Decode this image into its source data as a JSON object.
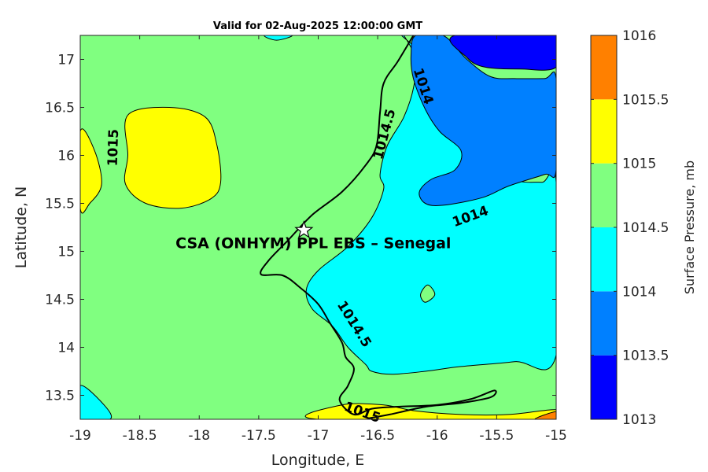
{
  "title": "Valid for 02-Aug-2025 12:00:00 GMT",
  "x_axis": {
    "label": "Longitude, E",
    "min": -19,
    "max": -15,
    "ticks": [
      -19,
      -18.5,
      -18,
      -17.5,
      -17,
      -16.5,
      -16,
      -15.5,
      -15
    ],
    "tick_labels": [
      "-19",
      "-18.5",
      "-18",
      "-17.5",
      "-17",
      "-16.5",
      "-16",
      "-15.5",
      "-15"
    ]
  },
  "y_axis": {
    "label": "Latitude, N",
    "min": 13.25,
    "max": 17.25,
    "ticks": [
      13.5,
      14,
      14.5,
      15,
      15.5,
      16,
      16.5,
      17
    ],
    "tick_labels": [
      "13.5",
      "14",
      "14.5",
      "15",
      "15.5",
      "16",
      "16.5",
      "17"
    ]
  },
  "colorbar": {
    "label": "Surface Pressure, mb",
    "levels": [
      1013,
      1013.5,
      1014,
      1014.5,
      1015,
      1015.5,
      1016
    ],
    "tick_labels": [
      "1013",
      "1013.5",
      "1014",
      "1014.5",
      "1015",
      "1015.5",
      "1016"
    ],
    "colors": [
      "#0000ff",
      "#0080ff",
      "#00ffff",
      "#80ff80",
      "#ffff00",
      "#ff8000",
      "#ff0000"
    ]
  },
  "site": {
    "name": "CSA (ONHYM) PPL EBS  – Senegal",
    "lon": -17.12,
    "lat": 15.22,
    "marker": "star-icon"
  },
  "contour_labels": [
    {
      "text": "1015",
      "lon": -18.72,
      "lat": 16.08,
      "angle": -88
    },
    {
      "text": "1014.5",
      "lon": -16.44,
      "lat": 16.22,
      "angle": -75
    },
    {
      "text": "1014",
      "lon": -16.12,
      "lat": 16.72,
      "angle": 72
    },
    {
      "text": "1014",
      "lon": -15.72,
      "lat": 15.36,
      "angle": -20
    },
    {
      "text": "1014.5",
      "lon": -16.7,
      "lat": 14.24,
      "angle": 58
    },
    {
      "text": "1015",
      "lon": -16.63,
      "lat": 13.32,
      "angle": 20
    }
  ],
  "map_fields": {
    "background_level": "1014.5",
    "regions": [
      {
        "level": "1014",
        "boundary": [
          [
            -16.3,
            17.25
          ],
          [
            -16.05,
            16.95
          ],
          [
            -15.96,
            16.55
          ],
          [
            -15.8,
            16.18
          ],
          [
            -15.55,
            16.0
          ],
          [
            -15.35,
            15.75
          ],
          [
            -15.12,
            15.72
          ],
          [
            -15.0,
            15.72
          ],
          [
            -15.0,
            13.92
          ],
          [
            -15.35,
            13.85
          ],
          [
            -15.8,
            13.8
          ],
          [
            -16.1,
            13.75
          ],
          [
            -16.38,
            13.72
          ],
          [
            -16.55,
            13.75
          ],
          [
            -16.6,
            13.82
          ],
          [
            -16.75,
            14.0
          ],
          [
            -16.88,
            14.22
          ],
          [
            -17.05,
            14.4
          ],
          [
            -17.1,
            14.6
          ],
          [
            -17.0,
            14.8
          ],
          [
            -16.75,
            15.05
          ],
          [
            -16.55,
            15.35
          ],
          [
            -16.45,
            15.65
          ],
          [
            -16.48,
            15.8
          ],
          [
            -16.42,
            16.1
          ],
          [
            -16.28,
            16.4
          ],
          [
            -16.2,
            16.7
          ],
          [
            -16.18,
            17.0
          ],
          [
            -16.28,
            17.25
          ]
        ]
      },
      {
        "level": "1013.5",
        "boundary": [
          [
            -15.95,
            17.25
          ],
          [
            -15.75,
            17.0
          ],
          [
            -15.55,
            16.82
          ],
          [
            -15.35,
            16.8
          ],
          [
            -15.1,
            16.8
          ],
          [
            -15.0,
            16.8
          ],
          [
            -15.0,
            15.85
          ],
          [
            -15.1,
            15.8
          ],
          [
            -15.4,
            15.68
          ],
          [
            -15.62,
            15.56
          ],
          [
            -15.95,
            15.48
          ],
          [
            -16.1,
            15.5
          ],
          [
            -16.15,
            15.62
          ],
          [
            -16.05,
            15.75
          ],
          [
            -15.85,
            15.85
          ],
          [
            -15.8,
            16.05
          ],
          [
            -15.98,
            16.25
          ],
          [
            -16.1,
            16.48
          ],
          [
            -16.2,
            16.8
          ],
          [
            -16.22,
            17.05
          ],
          [
            -16.18,
            17.25
          ]
        ]
      },
      {
        "level": "1013",
        "boundary": [
          [
            -15.85,
            17.25
          ],
          [
            -15.75,
            17.02
          ],
          [
            -15.6,
            16.92
          ],
          [
            -15.3,
            16.9
          ],
          [
            -15.0,
            16.92
          ],
          [
            -15.0,
            17.25
          ]
        ]
      },
      {
        "level": "1014",
        "boundary": [
          [
            -17.45,
            17.25
          ],
          [
            -17.35,
            17.2
          ],
          [
            -17.22,
            17.25
          ]
        ]
      },
      {
        "level": "1014",
        "boundary": [
          [
            -19.0,
            13.6
          ],
          [
            -18.8,
            13.4
          ],
          [
            -18.75,
            13.25
          ],
          [
            -19.0,
            13.25
          ]
        ]
      },
      {
        "level": "1014.5",
        "boundary": [
          [
            -16.08,
            14.65
          ],
          [
            -16.02,
            14.55
          ],
          [
            -16.1,
            14.47
          ],
          [
            -16.14,
            14.55
          ]
        ]
      },
      {
        "level": "1015",
        "boundary": [
          [
            -18.6,
            16.42
          ],
          [
            -18.25,
            16.5
          ],
          [
            -17.95,
            16.4
          ],
          [
            -17.85,
            16.1
          ],
          [
            -17.82,
            15.72
          ],
          [
            -17.9,
            15.55
          ],
          [
            -18.15,
            15.45
          ],
          [
            -18.45,
            15.5
          ],
          [
            -18.62,
            15.7
          ],
          [
            -18.6,
            16.0
          ]
        ]
      },
      {
        "level": "1015",
        "boundary": [
          [
            -19.0,
            16.25
          ],
          [
            -18.88,
            16.05
          ],
          [
            -18.82,
            15.7
          ],
          -1,
          [
            -18.92,
            15.5
          ],
          [
            -19.0,
            15.45
          ]
        ]
      },
      {
        "level": "1015",
        "boundary": [
          [
            -17.0,
            13.25
          ],
          [
            -16.8,
            13.4
          ],
          [
            -16.45,
            13.4
          ],
          [
            -16.2,
            13.34
          ],
          [
            -15.8,
            13.3
          ],
          [
            -15.4,
            13.3
          ],
          [
            -15.0,
            13.35
          ],
          [
            -15.0,
            13.25
          ]
        ]
      },
      {
        "level": "1015.5",
        "boundary": [
          [
            -15.18,
            13.25
          ],
          [
            -15.0,
            13.33
          ],
          [
            -15.0,
            13.25
          ]
        ]
      }
    ]
  },
  "coastline": [
    [
      [
        -16.2,
        17.25
      ],
      [
        -16.33,
        16.98
      ],
      [
        -16.45,
        16.75
      ],
      [
        -16.48,
        16.45
      ],
      [
        -16.51,
        16.1
      ],
      [
        -16.6,
        15.9
      ],
      [
        -16.8,
        15.62
      ],
      [
        -17.05,
        15.38
      ],
      [
        -17.25,
        15.12
      ],
      [
        -17.42,
        14.9
      ],
      [
        -17.48,
        14.76
      ],
      [
        -17.3,
        14.75
      ],
      [
        -17.15,
        14.62
      ],
      [
        -17.0,
        14.45
      ],
      [
        -16.9,
        14.25
      ],
      [
        -16.8,
        14.05
      ],
      [
        -16.77,
        13.9
      ],
      [
        -16.7,
        13.78
      ],
      [
        -16.75,
        13.6
      ],
      [
        -16.82,
        13.45
      ],
      [
        -16.7,
        13.3
      ],
      [
        -16.55,
        13.36
      ],
      [
        -16.35,
        13.38
      ],
      [
        -16.0,
        13.4
      ],
      [
        -15.72,
        13.46
      ],
      [
        -15.52,
        13.55
      ],
      [
        -15.55,
        13.48
      ],
      [
        -15.8,
        13.42
      ],
      [
        -16.1,
        13.38
      ],
      [
        -16.4,
        13.3
      ],
      [
        -16.58,
        13.26
      ]
    ]
  ],
  "coastline_smooth": true
}
